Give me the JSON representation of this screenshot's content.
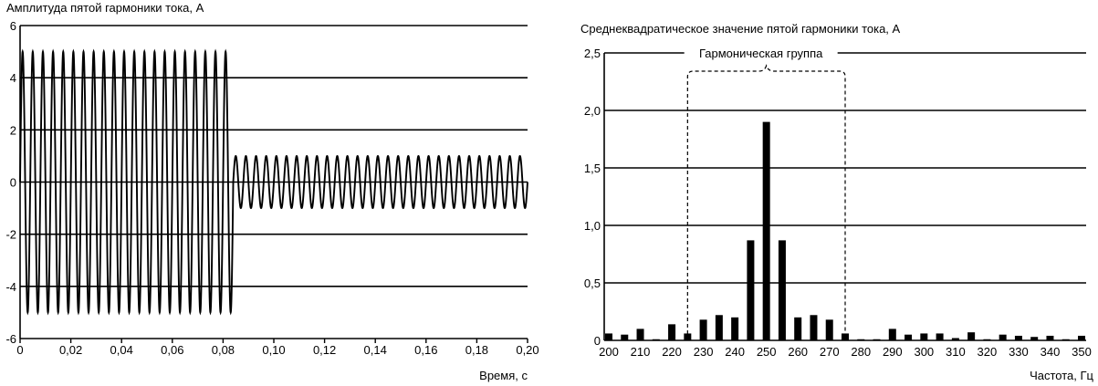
{
  "chart_data": [
    {
      "type": "line",
      "title": "Амплитуда пятой гармоники тока, А",
      "xlabel": "Время, с",
      "ylabel": "",
      "xlim": [
        0,
        0.2
      ],
      "ylim": [
        -6,
        6
      ],
      "x_ticks": [
        "0",
        "0,02",
        "0,04",
        "0,06",
        "0,08",
        "0,10",
        "0,12",
        "0,14",
        "0,16",
        "0,18",
        "0,20"
      ],
      "y_ticks": [
        "6",
        "4",
        "2",
        "0",
        "-2",
        "-4",
        "-6"
      ],
      "grid": "horizontal",
      "series": [
        {
          "frequency_hz": 250,
          "segments": [
            {
              "t_start": 0.0,
              "t_end": 0.084,
              "amplitude": 5.0
            },
            {
              "t_start": 0.084,
              "t_end": 0.2,
              "amplitude": 1.0
            }
          ]
        }
      ]
    },
    {
      "type": "bar",
      "title": "Среднеквадратическое значение пятой гармоники тока, А",
      "xlabel": "Частота, Гц",
      "ylabel": "",
      "xlim": [
        200,
        350
      ],
      "ylim": [
        0,
        2.5
      ],
      "x_ticks": [
        "200",
        "210",
        "220",
        "230",
        "240",
        "250",
        "260",
        "270",
        "280",
        "290",
        "300",
        "310",
        "320",
        "330",
        "340",
        "350"
      ],
      "y_ticks": [
        "2,5",
        "2,0",
        "1,5",
        "1,0",
        "0,5",
        "0"
      ],
      "grid": "horizontal",
      "annotation": "Гармоническая группа",
      "group_range": [
        225,
        275
      ],
      "x": [
        200,
        205,
        210,
        215,
        220,
        225,
        230,
        235,
        240,
        245,
        250,
        255,
        260,
        265,
        270,
        275,
        280,
        285,
        290,
        295,
        300,
        305,
        310,
        315,
        320,
        325,
        330,
        335,
        340,
        345,
        350
      ],
      "values": [
        0.06,
        0.05,
        0.1,
        0.01,
        0.14,
        0.06,
        0.18,
        0.22,
        0.2,
        0.87,
        1.9,
        0.87,
        0.2,
        0.22,
        0.18,
        0.06,
        0.01,
        0.01,
        0.1,
        0.05,
        0.06,
        0.06,
        0.02,
        0.07,
        0.01,
        0.05,
        0.04,
        0.03,
        0.04,
        0.01,
        0.04
      ]
    }
  ]
}
